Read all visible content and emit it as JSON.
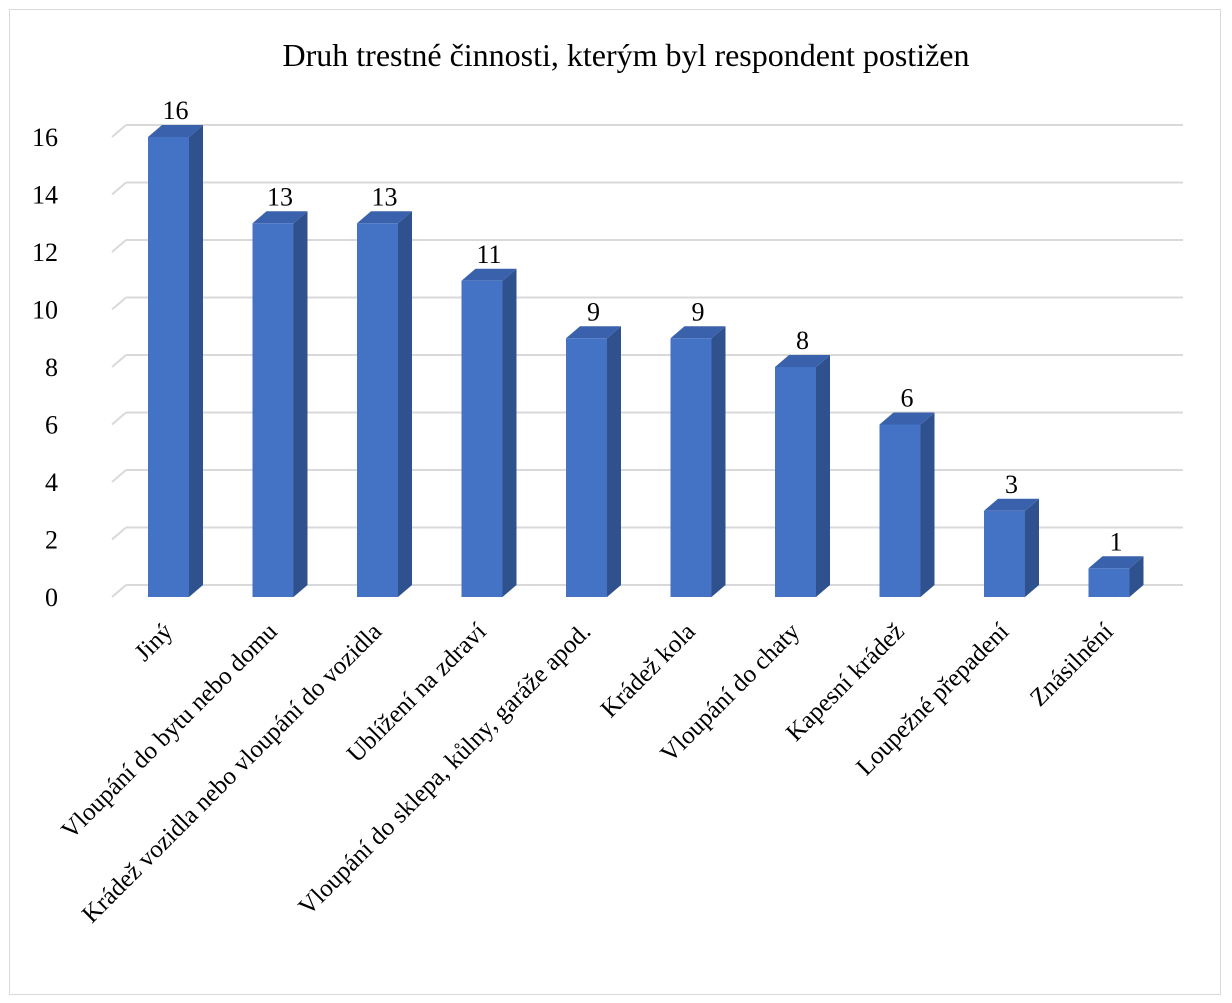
{
  "chart_data": {
    "type": "bar",
    "title": "Druh trestné činnosti, kterým byl respondent postižen",
    "categories": [
      "Jiný",
      "Vloupání do bytu nebo domu",
      "Krádež vozidla nebo vloupání do vozidla",
      "Ublížení na zdraví",
      "Vloupání do sklepa, kůlny, garáže apod.",
      "Krádež kola",
      "Vloupání do chaty",
      "Kapesní krádež",
      "Loupežné přepadení",
      "Znásilnění"
    ],
    "values": [
      16,
      13,
      13,
      11,
      9,
      9,
      8,
      6,
      3,
      1
    ],
    "ylim": [
      0,
      16
    ],
    "yticks": [
      "0",
      "2",
      "4",
      "6",
      "8",
      "10",
      "12",
      "14",
      "16"
    ],
    "data_labels": [
      "16",
      "13",
      "13",
      "11",
      "9",
      "9",
      "8",
      "6",
      "3",
      "1"
    ],
    "grid": true,
    "legend": "none",
    "style": "3d-bar",
    "colors": {
      "front": "#4472C4",
      "side": "#2F528F",
      "top": "#3A62AC",
      "grid": "#d9d9d9"
    }
  }
}
